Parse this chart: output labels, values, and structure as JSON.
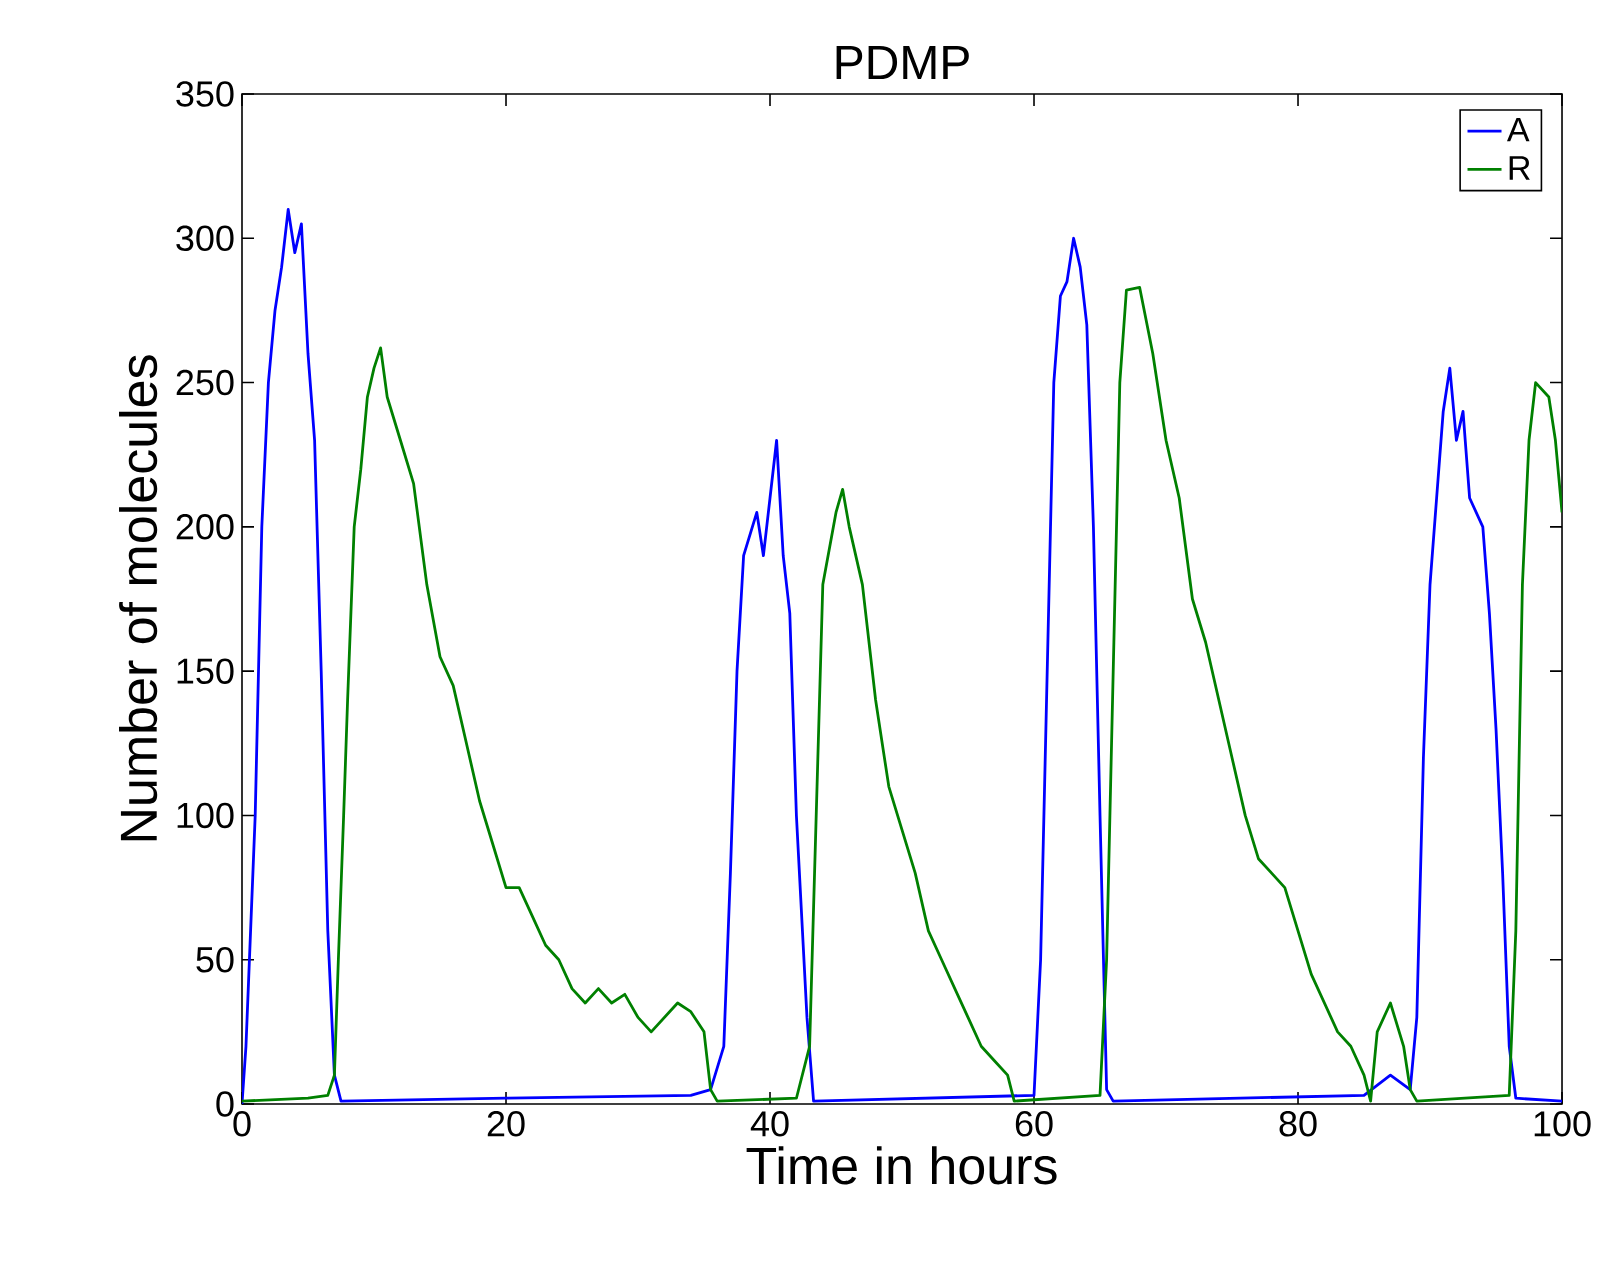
{
  "chart_data": {
    "type": "line",
    "title": "PDMP",
    "xlabel": "Time in hours",
    "ylabel": "Number of molecules",
    "xlim": [
      0,
      100
    ],
    "ylim": [
      0,
      350
    ],
    "xticks": [
      0,
      20,
      40,
      60,
      80,
      100
    ],
    "yticks": [
      0,
      50,
      100,
      150,
      200,
      250,
      300,
      350
    ],
    "legend": "top right",
    "grid": false,
    "marker": "none",
    "line_style": "solid",
    "series": [
      {
        "name": "A",
        "color": "#0000ff",
        "x": [
          0,
          0.3,
          1,
          1.5,
          2,
          2.5,
          3,
          3.5,
          4,
          4.5,
          5,
          5.5,
          6,
          6.5,
          7,
          7.5,
          20,
          34,
          35.5,
          36.5,
          37,
          37.5,
          38,
          39,
          39.5,
          40,
          40.5,
          41,
          41.5,
          42,
          42.8,
          43.3,
          60,
          60.5,
          61,
          61.5,
          62,
          62.5,
          63,
          63.5,
          64,
          64.5,
          65,
          65.5,
          66,
          85,
          87,
          88.5,
          89,
          89.5,
          90,
          90.5,
          91,
          91.5,
          92,
          92.5,
          93,
          94,
          94.5,
          95,
          95.5,
          96,
          96.5,
          100
        ],
        "values": [
          0,
          20,
          100,
          200,
          250,
          275,
          290,
          310,
          295,
          305,
          260,
          230,
          150,
          60,
          10,
          1,
          2,
          3,
          5,
          20,
          80,
          150,
          190,
          205,
          190,
          210,
          230,
          190,
          170,
          100,
          30,
          1,
          3,
          50,
          150,
          250,
          280,
          285,
          300,
          290,
          270,
          200,
          100,
          5,
          1,
          3,
          10,
          5,
          30,
          120,
          180,
          210,
          240,
          255,
          230,
          240,
          210,
          200,
          170,
          130,
          80,
          20,
          2,
          1
        ]
      },
      {
        "name": "R",
        "color": "#008000",
        "x": [
          0,
          5,
          6.5,
          7,
          7.3,
          7.7,
          8,
          8.5,
          9,
          9.5,
          10,
          10.5,
          11,
          12,
          13,
          14,
          15,
          16,
          17,
          18,
          19,
          20,
          21,
          22,
          23,
          24,
          25,
          26,
          27,
          28,
          29,
          30,
          31,
          32,
          33,
          34,
          35,
          35.5,
          36,
          42,
          43,
          43.5,
          44,
          45,
          45.5,
          46,
          47,
          48,
          49,
          50,
          51,
          52,
          53,
          54,
          55,
          56,
          57,
          58,
          58.5,
          65,
          65.5,
          66,
          66.5,
          67,
          68,
          69,
          70,
          71,
          72,
          73,
          74,
          75,
          76,
          77,
          78,
          79,
          80,
          81,
          82,
          83,
          84,
          85,
          85.5,
          86,
          87,
          88,
          88.5,
          89,
          96,
          96.5,
          97,
          97.5,
          98,
          99,
          99.5,
          100
        ],
        "values": [
          1,
          2,
          3,
          10,
          50,
          100,
          140,
          200,
          220,
          245,
          255,
          262,
          245,
          230,
          215,
          180,
          155,
          145,
          125,
          105,
          90,
          75,
          75,
          65,
          55,
          50,
          40,
          35,
          40,
          35,
          38,
          30,
          25,
          30,
          35,
          32,
          25,
          5,
          1,
          2,
          20,
          100,
          180,
          205,
          213,
          200,
          180,
          140,
          110,
          95,
          80,
          60,
          50,
          40,
          30,
          20,
          15,
          10,
          1,
          3,
          50,
          150,
          250,
          282,
          283,
          260,
          230,
          210,
          175,
          160,
          140,
          120,
          100,
          85,
          80,
          75,
          60,
          45,
          35,
          25,
          20,
          10,
          1,
          25,
          35,
          20,
          5,
          1,
          3,
          60,
          180,
          230,
          250,
          245,
          230,
          205
        ]
      }
    ]
  }
}
